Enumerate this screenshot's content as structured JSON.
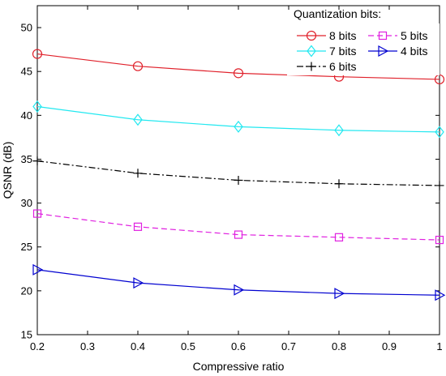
{
  "chart_data": {
    "type": "line",
    "title": "",
    "xlabel": "Compressive ratio",
    "ylabel": "QSNR (dB)",
    "xlim": [
      0.2,
      1
    ],
    "ylim": [
      15,
      52.5
    ],
    "xticks": [
      0.2,
      0.3,
      0.4,
      0.5,
      0.6,
      0.7,
      0.8,
      0.9,
      1
    ],
    "xtick_labels": [
      "0.2",
      "0.3",
      "0.4",
      "0.5",
      "0.6",
      "0.7",
      "0.8",
      "0.9",
      "1"
    ],
    "yticks": [
      15,
      20,
      25,
      30,
      35,
      40,
      45,
      50
    ],
    "ytick_labels": [
      "15",
      "20",
      "25",
      "30",
      "35",
      "40",
      "45",
      "50"
    ],
    "grid": false,
    "legend": {
      "title": "Quantization bits:",
      "placement": "top-right"
    },
    "x": [
      0.2,
      0.4,
      0.6,
      0.8,
      1.0
    ],
    "series": [
      {
        "name": "8 bits",
        "values": [
          47.0,
          45.6,
          44.8,
          44.4,
          44.1
        ],
        "color": "#e0202a",
        "marker": "circle",
        "dash": "solid"
      },
      {
        "name": "7 bits",
        "values": [
          41.0,
          39.5,
          38.7,
          38.3,
          38.1
        ],
        "color": "#22e8f0",
        "marker": "diamond",
        "dash": "solid"
      },
      {
        "name": "6 bits",
        "values": [
          34.8,
          33.4,
          32.6,
          32.2,
          32.0
        ],
        "color": "#000000",
        "marker": "plus",
        "dash": "dashdot"
      },
      {
        "name": "5 bits",
        "values": [
          28.8,
          27.3,
          26.4,
          26.1,
          25.8
        ],
        "color": "#e020e0",
        "marker": "square",
        "dash": "dashed"
      },
      {
        "name": "4 bits",
        "values": [
          22.4,
          20.9,
          20.1,
          19.7,
          19.5
        ],
        "color": "#0000d0",
        "marker": "triangle-right",
        "dash": "solid"
      }
    ]
  }
}
